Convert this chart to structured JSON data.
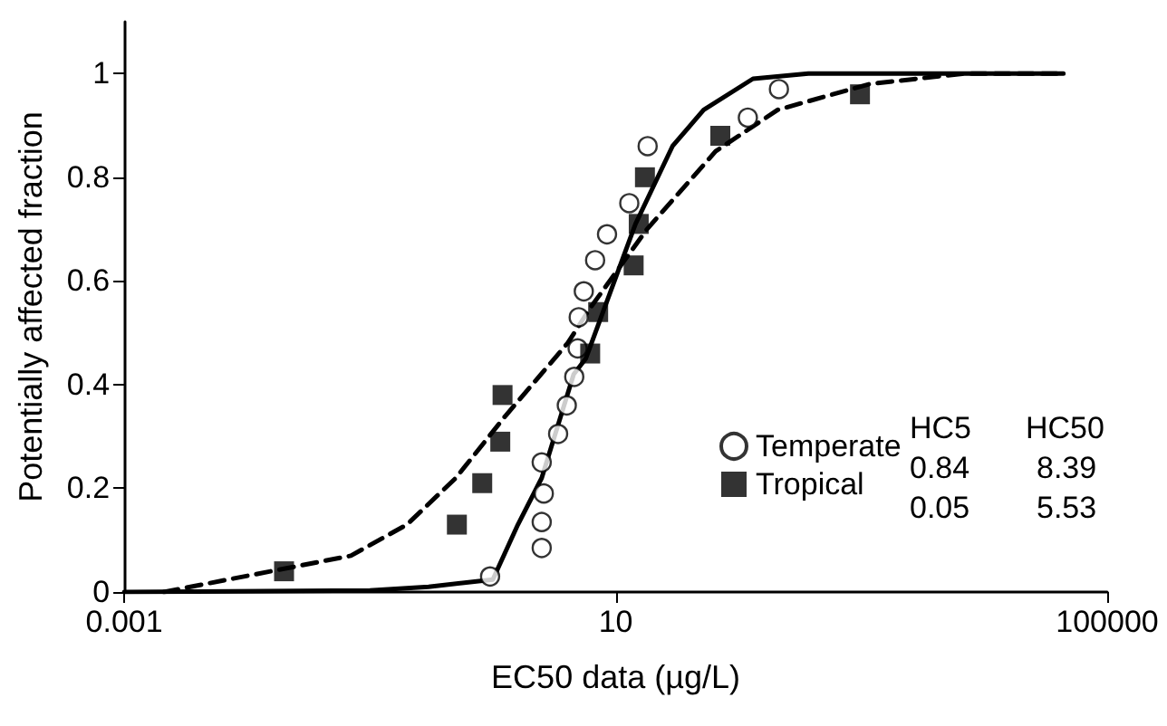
{
  "chart_data": {
    "type": "scatter",
    "xlabel": "EC50 data (µg/L)",
    "ylabel": "Potentially affected fraction",
    "log": "x",
    "xlim": [
      0.001,
      100000
    ],
    "xticks": [
      0.001,
      10,
      100000
    ],
    "ylim": [
      0,
      1.1
    ],
    "yticks": [
      0,
      0.2,
      0.4,
      0.6,
      0.8,
      1
    ],
    "grid": false,
    "legend": "bottom right",
    "annotations": [
      "HC5",
      "HC50",
      "0.84",
      "8.39",
      "0.05",
      "5.53"
    ],
    "series": [
      {
        "name": "Temperate",
        "marker": "circle",
        "color": "#000000",
        "x": [
          0.95,
          2.5,
          2.5,
          2.6,
          2.5,
          3.4,
          4.0,
          4.6,
          4.9,
          5.0,
          5.5,
          6.8,
          8.5,
          12.9,
          18.2,
          119,
          213
        ],
        "values": [
          0.03,
          0.085,
          0.135,
          0.19,
          0.25,
          0.305,
          0.36,
          0.415,
          0.47,
          0.53,
          0.58,
          0.64,
          0.69,
          0.75,
          0.86,
          0.915,
          0.97
        ]
      },
      {
        "name": "Tropical",
        "marker": "square",
        "color": "#000000",
        "x": [
          0.02,
          0.51,
          0.82,
          1.15,
          1.2,
          6.2,
          7.2,
          14,
          15.4,
          17.3,
          71,
          973
        ],
        "values": [
          0.04,
          0.13,
          0.21,
          0.29,
          0.38,
          0.46,
          0.54,
          0.63,
          0.71,
          0.8,
          0.88,
          0.96
        ]
      },
      {
        "type": "line",
        "marker": "none",
        "line_style": "solid",
        "color": "#000000",
        "x": [
          0.001,
          0.1,
          0.3,
          1.0,
          1.6,
          2.5,
          4.55,
          5.7,
          14.5,
          29,
          52,
          131,
          370,
          44000
        ],
        "values": [
          0,
          0.003,
          0.01,
          0.024,
          0.13,
          0.22,
          0.42,
          0.45,
          0.71,
          0.86,
          0.93,
          0.99,
          1,
          1
        ]
      },
      {
        "type": "line",
        "marker": "none",
        "line_style": "dashed",
        "color": "#000000",
        "x": [
          0.0021,
          0.02,
          0.07,
          0.2,
          0.5,
          1.27,
          4.06,
          6.3,
          18,
          65,
          208,
          1170,
          6800,
          44000
        ],
        "values": [
          0,
          0.045,
          0.07,
          0.13,
          0.22,
          0.34,
          0.48,
          0.55,
          0.7,
          0.85,
          0.93,
          0.98,
          1,
          1
        ]
      }
    ]
  }
}
